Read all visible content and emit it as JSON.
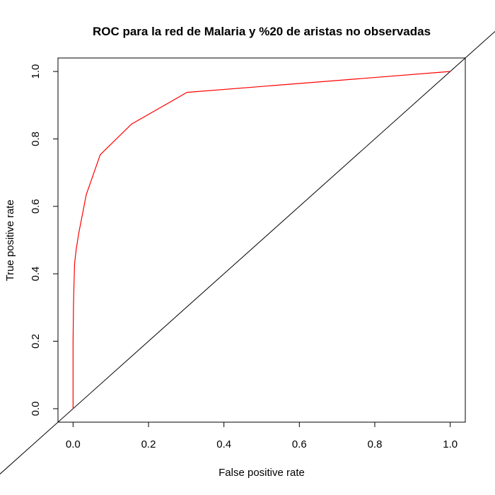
{
  "chart_data": {
    "type": "line",
    "title": "ROC para la red de Malaria y %20 de aristas no observadas",
    "xlabel": "False positive rate",
    "ylabel": "True positive rate",
    "xlim": [
      -0.04,
      1.04
    ],
    "ylim": [
      -0.04,
      1.04
    ],
    "xticks": [
      0.0,
      0.2,
      0.4,
      0.6,
      0.8,
      1.0
    ],
    "yticks": [
      0.0,
      0.2,
      0.4,
      0.6,
      0.8,
      1.0
    ],
    "xtick_labels": [
      "0.0",
      "0.2",
      "0.4",
      "0.6",
      "0.8",
      "1.0"
    ],
    "ytick_labels": [
      "0.0",
      "0.2",
      "0.4",
      "0.6",
      "0.8",
      "1.0"
    ],
    "grid": false,
    "legend": "none",
    "series": [
      {
        "color": "#ff0000",
        "x": [
          0.0,
          0.0,
          0.001,
          0.002,
          0.004,
          0.008,
          0.015,
          0.035,
          0.072,
          0.155,
          0.302,
          1.0
        ],
        "y": [
          0.0,
          0.2,
          0.3,
          0.35,
          0.43,
          0.47,
          0.52,
          0.635,
          0.753,
          0.844,
          0.938,
          1.0
        ]
      }
    ],
    "reference_line": {
      "color": "#000000",
      "intercept": 0,
      "slope": 1
    }
  }
}
